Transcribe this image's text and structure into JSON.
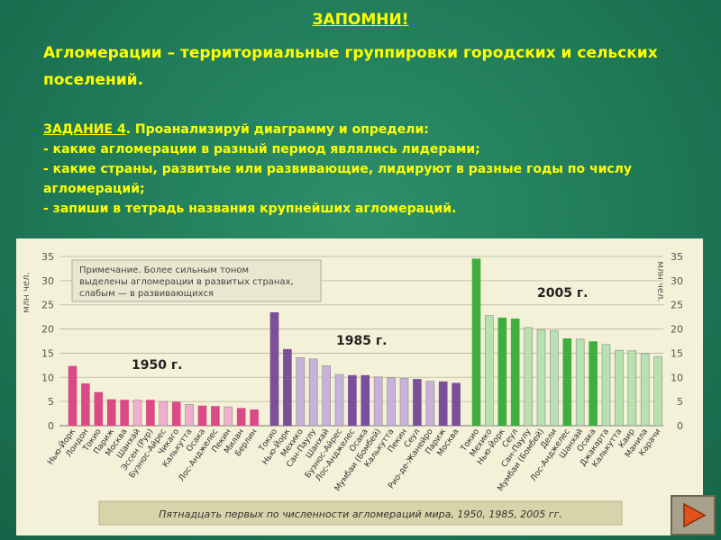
{
  "heading": "ЗАПОМНИ!",
  "definition": "Агломерации – территориальные группировки городских и сельских поселений.",
  "task": {
    "label": "ЗАДАНИЕ 4",
    "intro": ". Проанализируй диаграмму и определи:",
    "items": [
      "- какие агломерации в разный период являлись лидерами;",
      "- какие страны, развитые или развивающие, лидируют в разные годы по числу агломераций;",
      "- запиши в тетрадь названия крупнейших агломераций."
    ]
  },
  "chart_data": {
    "type": "bar",
    "ylabel_left": "млн чел.",
    "ylabel_right": "млн чел.",
    "ylim": [
      0,
      35
    ],
    "yticks": [
      0,
      5,
      10,
      15,
      20,
      25,
      30,
      35
    ],
    "note_lines": [
      "Примечание.  Более сильным тоном",
      "выделены агломерации в развитых странах,",
      "слабым — в развивающихся"
    ],
    "caption": "Пятнадцать первых по численности агломераций мира, 1950, 1985, 2005 гг.",
    "colors": {
      "1950_dark": "#d94a86",
      "1950_light": "#f0b0cc",
      "1985_dark": "#7b4f9a",
      "1985_light": "#c9b2d9",
      "2005_dark": "#3fae3f",
      "2005_light": "#b8e0b0"
    },
    "groups": [
      {
        "label": "1950 г.",
        "bars": [
          {
            "city": "Нью-Йорк",
            "value": 12.3,
            "developed": true
          },
          {
            "city": "Лондон",
            "value": 8.7,
            "developed": true
          },
          {
            "city": "Токио",
            "value": 6.9,
            "developed": true
          },
          {
            "city": "Париж",
            "value": 5.4,
            "developed": true
          },
          {
            "city": "Москва",
            "value": 5.3,
            "developed": true
          },
          {
            "city": "Шанхай",
            "value": 5.3,
            "developed": false
          },
          {
            "city": "Эссен (Рур)",
            "value": 5.3,
            "developed": true
          },
          {
            "city": "Буэнос-Айрес",
            "value": 5.0,
            "developed": false
          },
          {
            "city": "Чикаго",
            "value": 4.9,
            "developed": true
          },
          {
            "city": "Калькутта",
            "value": 4.4,
            "developed": false
          },
          {
            "city": "Осака",
            "value": 4.1,
            "developed": true
          },
          {
            "city": "Лос-Анджелес",
            "value": 4.0,
            "developed": true
          },
          {
            "city": "Пекин",
            "value": 3.9,
            "developed": false
          },
          {
            "city": "Милан",
            "value": 3.6,
            "developed": true
          },
          {
            "city": "Берлин",
            "value": 3.3,
            "developed": true
          }
        ]
      },
      {
        "label": "1985 г.",
        "bars": [
          {
            "city": "Токио",
            "value": 23.4,
            "developed": true
          },
          {
            "city": "Нью-Йорк",
            "value": 15.8,
            "developed": true
          },
          {
            "city": "Мехико",
            "value": 14.1,
            "developed": false
          },
          {
            "city": "Сан-Паулу",
            "value": 13.8,
            "developed": false
          },
          {
            "city": "Шанхай",
            "value": 12.4,
            "developed": false
          },
          {
            "city": "Буэнос-Айрес",
            "value": 10.6,
            "developed": false
          },
          {
            "city": "Лос-Анджелес",
            "value": 10.4,
            "developed": true
          },
          {
            "city": "Осака",
            "value": 10.4,
            "developed": true
          },
          {
            "city": "Мумбаи (Бомбей)",
            "value": 10.1,
            "developed": false
          },
          {
            "city": "Калькутта",
            "value": 9.9,
            "developed": false
          },
          {
            "city": "Пекин",
            "value": 9.8,
            "developed": false
          },
          {
            "city": "Сеул",
            "value": 9.6,
            "developed": true
          },
          {
            "city": "Рио-де-Жанейро",
            "value": 9.2,
            "developed": false
          },
          {
            "city": "Париж",
            "value": 9.1,
            "developed": true
          },
          {
            "city": "Москва",
            "value": 8.8,
            "developed": true
          }
        ]
      },
      {
        "label": "2005 г.",
        "bars": [
          {
            "city": "Токио",
            "value": 34.5,
            "developed": true
          },
          {
            "city": "Мехико",
            "value": 22.8,
            "developed": false
          },
          {
            "city": "Нью-Йорк",
            "value": 22.3,
            "developed": true
          },
          {
            "city": "Сеул",
            "value": 22.1,
            "developed": true
          },
          {
            "city": "Сан-Паулу",
            "value": 20.3,
            "developed": false
          },
          {
            "city": "Мумбаи (Бомбей)",
            "value": 19.9,
            "developed": false
          },
          {
            "city": "Дели",
            "value": 19.7,
            "developed": false
          },
          {
            "city": "Лос-Анджелес",
            "value": 18.0,
            "developed": true
          },
          {
            "city": "Шанхай",
            "value": 17.9,
            "developed": false
          },
          {
            "city": "Осака",
            "value": 17.4,
            "developed": true
          },
          {
            "city": "Джакарта",
            "value": 16.8,
            "developed": false
          },
          {
            "city": "Калькутта",
            "value": 15.6,
            "developed": false
          },
          {
            "city": "Каир",
            "value": 15.5,
            "developed": false
          },
          {
            "city": "Манила",
            "value": 14.9,
            "developed": false
          },
          {
            "city": "Карачи",
            "value": 14.3,
            "developed": false
          }
        ]
      }
    ]
  }
}
